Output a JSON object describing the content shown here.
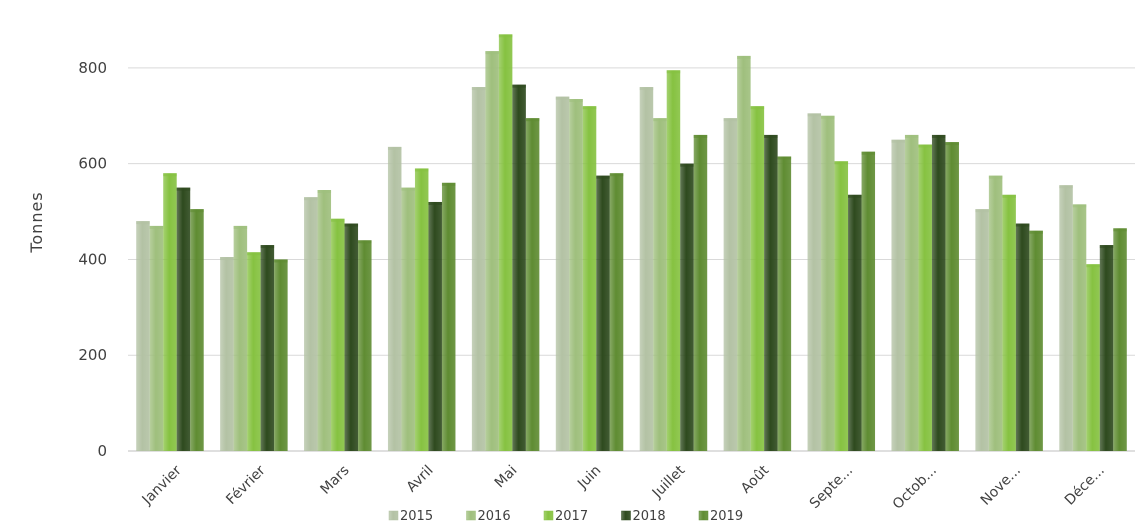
{
  "chart_data": {
    "type": "bar",
    "title": "",
    "xlabel": "",
    "ylabel": "Tonnes",
    "ylim": [
      0,
      900
    ],
    "yticks": [
      0,
      200,
      400,
      600,
      800
    ],
    "grid": true,
    "legend_position": "bottom",
    "categories": [
      "Janvier",
      "Février",
      "Mars",
      "Avril",
      "Mai",
      "Juin",
      "Juillet",
      "Août",
      "Septe...",
      "Octob...",
      "Nove...",
      "Déce..."
    ],
    "series": [
      {
        "name": "2015",
        "color": "#b3c2a4",
        "values": [
          480,
          405,
          530,
          635,
          760,
          740,
          760,
          695,
          705,
          650,
          505,
          555
        ]
      },
      {
        "name": "2016",
        "color": "#9fbf7d",
        "values": [
          470,
          470,
          545,
          550,
          835,
          735,
          695,
          825,
          700,
          660,
          575,
          515
        ]
      },
      {
        "name": "2017",
        "color": "#86c241",
        "values": [
          580,
          415,
          485,
          590,
          870,
          720,
          795,
          720,
          605,
          640,
          535,
          390
        ]
      },
      {
        "name": "2018",
        "color": "#2e4a1e",
        "values": [
          550,
          430,
          475,
          520,
          765,
          575,
          600,
          660,
          535,
          660,
          475,
          430
        ]
      },
      {
        "name": "2019",
        "color": "#5f8c32",
        "values": [
          505,
          400,
          440,
          560,
          695,
          580,
          660,
          615,
          625,
          645,
          460,
          465
        ]
      }
    ]
  }
}
